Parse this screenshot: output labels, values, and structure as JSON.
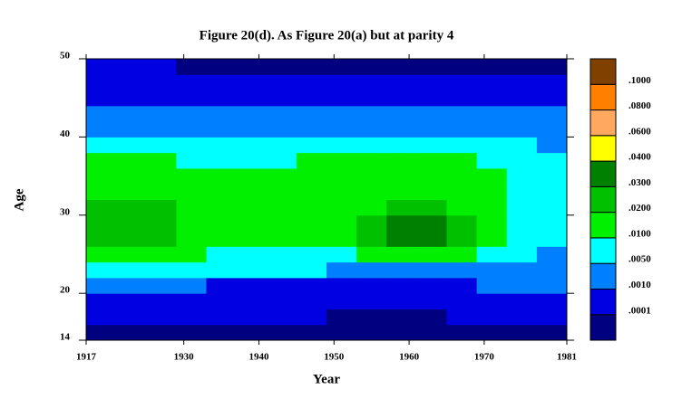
{
  "chart_data": {
    "type": "contour",
    "title": "Figure 20(d). As Figure 20(a) but at parity 4",
    "xlabel": "Year",
    "ylabel": "Age",
    "xlim": [
      1917,
      1981
    ],
    "ylim": [
      14,
      50
    ],
    "xticks": [
      1917,
      1930,
      1940,
      1950,
      1960,
      1970,
      1981
    ],
    "yticks": [
      14,
      20,
      30,
      40,
      50
    ],
    "x": [
      1917,
      1921,
      1925,
      1929,
      1933,
      1937,
      1941,
      1945,
      1949,
      1953,
      1957,
      1961,
      1965,
      1969,
      1973,
      1977,
      1981
    ],
    "y": [
      14,
      16,
      18,
      20,
      22,
      24,
      26,
      28,
      30,
      32,
      34,
      36,
      38,
      40,
      42,
      44,
      46,
      48,
      50
    ],
    "z": [
      [
        5e-05,
        5e-05,
        5e-05,
        5e-05,
        5e-05,
        5e-05,
        5e-05,
        5e-05,
        5e-05,
        5e-05,
        5e-05,
        5e-05,
        5e-05,
        5e-05,
        5e-05,
        5e-05
      ],
      [
        0.0005,
        0.0005,
        0.0005,
        0.0005,
        0.0005,
        0.0005,
        0.0005,
        0.0005,
        5e-05,
        5e-05,
        5e-05,
        5e-05,
        0.0005,
        0.0005,
        0.0005,
        0.0005
      ],
      [
        0.0005,
        0.0005,
        0.0005,
        0.0005,
        0.0005,
        0.0005,
        0.0005,
        0.0005,
        0.0005,
        0.0005,
        0.0005,
        0.0005,
        0.0005,
        0.0005,
        0.0005,
        0.0005
      ],
      [
        0.002,
        0.002,
        0.002,
        0.002,
        0.0005,
        0.0005,
        0.0005,
        0.0005,
        0.0005,
        0.0005,
        0.0005,
        0.0005,
        0.0005,
        0.002,
        0.002,
        0.002
      ],
      [
        0.007,
        0.007,
        0.007,
        0.007,
        0.007,
        0.007,
        0.007,
        0.007,
        0.002,
        0.002,
        0.002,
        0.002,
        0.002,
        0.002,
        0.002,
        0.002
      ],
      [
        0.012,
        0.012,
        0.012,
        0.012,
        0.007,
        0.007,
        0.007,
        0.007,
        0.007,
        0.012,
        0.012,
        0.012,
        0.012,
        0.007,
        0.007,
        0.002
      ],
      [
        0.022,
        0.022,
        0.022,
        0.012,
        0.012,
        0.012,
        0.012,
        0.012,
        0.012,
        0.022,
        0.032,
        0.032,
        0.022,
        0.012,
        0.007,
        0.007
      ],
      [
        0.022,
        0.022,
        0.022,
        0.012,
        0.012,
        0.012,
        0.012,
        0.012,
        0.012,
        0.022,
        0.032,
        0.032,
        0.022,
        0.012,
        0.007,
        0.007
      ],
      [
        0.022,
        0.022,
        0.022,
        0.012,
        0.012,
        0.012,
        0.012,
        0.012,
        0.012,
        0.012,
        0.022,
        0.022,
        0.012,
        0.012,
        0.007,
        0.007
      ],
      [
        0.012,
        0.012,
        0.012,
        0.012,
        0.012,
        0.012,
        0.012,
        0.012,
        0.012,
        0.012,
        0.012,
        0.012,
        0.012,
        0.012,
        0.007,
        0.007
      ],
      [
        0.012,
        0.012,
        0.012,
        0.012,
        0.012,
        0.012,
        0.012,
        0.012,
        0.012,
        0.012,
        0.012,
        0.012,
        0.012,
        0.012,
        0.007,
        0.007
      ],
      [
        0.012,
        0.012,
        0.012,
        0.007,
        0.007,
        0.007,
        0.007,
        0.012,
        0.012,
        0.012,
        0.012,
        0.012,
        0.012,
        0.007,
        0.007,
        0.007
      ],
      [
        0.007,
        0.007,
        0.007,
        0.007,
        0.007,
        0.007,
        0.007,
        0.007,
        0.007,
        0.007,
        0.007,
        0.007,
        0.007,
        0.007,
        0.007,
        0.002
      ],
      [
        0.002,
        0.002,
        0.002,
        0.002,
        0.002,
        0.002,
        0.002,
        0.002,
        0.002,
        0.002,
        0.002,
        0.002,
        0.002,
        0.002,
        0.002,
        0.002
      ],
      [
        0.002,
        0.002,
        0.002,
        0.002,
        0.002,
        0.002,
        0.002,
        0.002,
        0.002,
        0.002,
        0.002,
        0.002,
        0.002,
        0.002,
        0.002,
        0.002
      ],
      [
        0.0005,
        0.0005,
        0.0005,
        0.0005,
        0.0005,
        0.0005,
        0.0005,
        0.0005,
        0.0005,
        0.0005,
        0.0005,
        0.0005,
        0.0005,
        0.0005,
        0.0005,
        0.0005
      ],
      [
        0.0005,
        0.0005,
        0.0005,
        0.0005,
        0.0005,
        0.0005,
        0.0005,
        0.0005,
        0.0005,
        0.0005,
        0.0005,
        0.0005,
        0.0005,
        0.0005,
        0.0005,
        0.0005
      ],
      [
        0.0005,
        0.0005,
        0.0005,
        5e-05,
        5e-05,
        5e-05,
        5e-05,
        5e-05,
        5e-05,
        5e-05,
        5e-05,
        5e-05,
        5e-05,
        5e-05,
        5e-05,
        5e-05
      ]
    ],
    "levels": [
      {
        "value": 0.0001,
        "label": ".0001"
      },
      {
        "value": 0.001,
        "label": ".0010"
      },
      {
        "value": 0.005,
        "label": ".0050"
      },
      {
        "value": 0.01,
        "label": ".0100"
      },
      {
        "value": 0.02,
        "label": ".0200"
      },
      {
        "value": 0.03,
        "label": ".0300"
      },
      {
        "value": 0.04,
        "label": ".0400"
      },
      {
        "value": 0.06,
        "label": ".0600"
      },
      {
        "value": 0.08,
        "label": ".0800"
      },
      {
        "value": 0.1,
        "label": ".1000"
      }
    ],
    "level_colors": [
      "#000080",
      "#0000e0",
      "#0080ff",
      "#00ffff",
      "#00f000",
      "#00c000",
      "#008000",
      "#ffff00",
      "#ffa860",
      "#ff8000",
      "#804000"
    ]
  }
}
